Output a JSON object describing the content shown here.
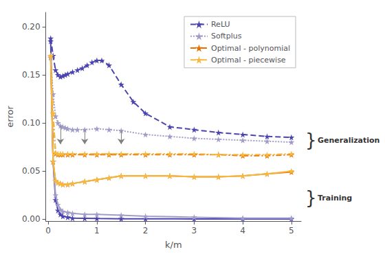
{
  "chart_data": {
    "type": "line",
    "xlabel": "k/m",
    "ylabel": "error",
    "xlim": [
      -0.05,
      5.2
    ],
    "ylim": [
      -0.002,
      0.215
    ],
    "xticks": [
      0,
      1,
      2,
      3,
      4,
      5
    ],
    "yticks": [
      {
        "value": 0,
        "label": "0.00"
      },
      0.05,
      {
        "value": 0.1,
        "label": "0.10"
      },
      0.15,
      {
        "value": 0.2,
        "label": "0.20"
      }
    ],
    "grid": false,
    "legend": "upper right",
    "marker": "star",
    "series": [
      {
        "name": "ReLU",
        "color": "#4b44b0",
        "line_style": "dashed",
        "x": [
          0.05,
          0.1,
          0.15,
          0.2,
          0.25,
          0.3,
          0.35,
          0.4,
          0.5,
          0.6,
          0.7,
          0.8,
          0.9,
          1.0,
          1.1,
          1.25,
          1.5,
          1.75,
          2.0,
          2.5,
          3.0,
          3.5,
          4.0,
          4.5,
          5.0
        ],
        "values": [
          0.188,
          0.17,
          0.155,
          0.15,
          0.148,
          0.149,
          0.15,
          0.151,
          0.153,
          0.155,
          0.157,
          0.16,
          0.163,
          0.165,
          0.165,
          0.16,
          0.14,
          0.122,
          0.11,
          0.096,
          0.093,
          0.09,
          0.088,
          0.086,
          0.085
        ]
      },
      {
        "name": "ReLU",
        "color": "#4b44b0",
        "line_style": "solid",
        "x": [
          0.05,
          0.1,
          0.15,
          0.2,
          0.25,
          0.3,
          0.4,
          0.5,
          0.75,
          1.0,
          1.5,
          2.0,
          3.0,
          4.0,
          5.0
        ],
        "values": [
          0.185,
          0.06,
          0.02,
          0.009,
          0.005,
          0.003,
          0.002,
          0.001,
          0.0008,
          0.0006,
          0.0004,
          0.0003,
          0.0002,
          0.0002,
          0.0002
        ]
      },
      {
        "name": "Softplus",
        "color": "#a09cc8",
        "line_style": "dotted",
        "x": [
          0.05,
          0.1,
          0.15,
          0.2,
          0.25,
          0.3,
          0.35,
          0.4,
          0.5,
          0.6,
          0.75,
          1.0,
          1.25,
          1.5,
          2.0,
          2.5,
          3.0,
          3.5,
          4.0,
          4.5,
          5.0
        ],
        "values": [
          0.168,
          0.13,
          0.107,
          0.1,
          0.097,
          0.096,
          0.095,
          0.094,
          0.093,
          0.093,
          0.093,
          0.094,
          0.093,
          0.092,
          0.088,
          0.086,
          0.084,
          0.083,
          0.082,
          0.081,
          0.08
        ]
      },
      {
        "name": "Softplus",
        "color": "#a09cc8",
        "line_style": "solid",
        "x": [
          0.05,
          0.1,
          0.15,
          0.2,
          0.25,
          0.3,
          0.4,
          0.5,
          0.75,
          1.0,
          1.5,
          2.0,
          3.0,
          4.0,
          5.0
        ],
        "values": [
          0.168,
          0.06,
          0.025,
          0.015,
          0.01,
          0.008,
          0.007,
          0.006,
          0.005,
          0.005,
          0.004,
          0.003,
          0.002,
          0.001,
          0.001
        ]
      },
      {
        "name": "Optimal - polynomial",
        "color": "#e87000",
        "line_style": "dashdot",
        "x": [
          0.05,
          0.1,
          0.15,
          0.2,
          0.25,
          0.3,
          0.4,
          0.5,
          0.75,
          1.0,
          1.25,
          1.5,
          2.0,
          2.5,
          3.0,
          3.5,
          4.0,
          4.5,
          5.0
        ],
        "values": [
          0.17,
          0.11,
          0.068,
          0.067,
          0.067,
          0.067,
          0.067,
          0.067,
          0.067,
          0.067,
          0.067,
          0.067,
          0.067,
          0.067,
          0.067,
          0.067,
          0.066,
          0.066,
          0.067
        ]
      },
      {
        "name": "Optimal - polynomial",
        "color": "#e87000",
        "line_style": "solid",
        "x": [
          0.05,
          0.1,
          0.15,
          0.2,
          0.25,
          0.3,
          0.4,
          0.5,
          0.75,
          1.0,
          1.25,
          1.5,
          2.0,
          2.5,
          3.0,
          3.5,
          4.0,
          4.5,
          5.0
        ],
        "values": [
          0.17,
          0.06,
          0.04,
          0.038,
          0.037,
          0.036,
          0.036,
          0.037,
          0.039,
          0.041,
          0.043,
          0.045,
          0.045,
          0.045,
          0.044,
          0.044,
          0.045,
          0.047,
          0.049
        ]
      },
      {
        "name": "Optimal - piecewise",
        "color": "#f5b942",
        "line_style": "dashdot",
        "x": [
          0.05,
          0.1,
          0.15,
          0.2,
          0.25,
          0.3,
          0.4,
          0.5,
          0.75,
          1.0,
          1.25,
          1.5,
          2.0,
          2.5,
          3.0,
          3.5,
          4.0,
          4.5,
          5.0
        ],
        "values": [
          0.17,
          0.11,
          0.069,
          0.068,
          0.068,
          0.068,
          0.068,
          0.068,
          0.068,
          0.068,
          0.068,
          0.068,
          0.068,
          0.068,
          0.068,
          0.067,
          0.067,
          0.067,
          0.068
        ]
      },
      {
        "name": "Optimal - piecewise",
        "color": "#f5b942",
        "line_style": "solid",
        "x": [
          0.05,
          0.1,
          0.15,
          0.2,
          0.25,
          0.3,
          0.4,
          0.5,
          0.75,
          1.0,
          1.25,
          1.5,
          2.0,
          2.5,
          3.0,
          3.5,
          4.0,
          4.5,
          5.0
        ],
        "values": [
          0.17,
          0.06,
          0.04,
          0.038,
          0.037,
          0.036,
          0.036,
          0.037,
          0.039,
          0.041,
          0.043,
          0.045,
          0.045,
          0.045,
          0.044,
          0.044,
          0.045,
          0.047,
          0.05
        ]
      }
    ],
    "arrows": [
      {
        "x": 0.25,
        "y_start": 0.097,
        "y_end": 0.078
      },
      {
        "x": 0.75,
        "y_start": 0.093,
        "y_end": 0.078
      },
      {
        "x": 1.5,
        "y_start": 0.092,
        "y_end": 0.078
      }
    ],
    "annotations": [
      {
        "bracket": "}",
        "text": "Generalization",
        "y": 0.082
      },
      {
        "bracket": "}",
        "text": "Training",
        "y": 0.022
      }
    ]
  }
}
